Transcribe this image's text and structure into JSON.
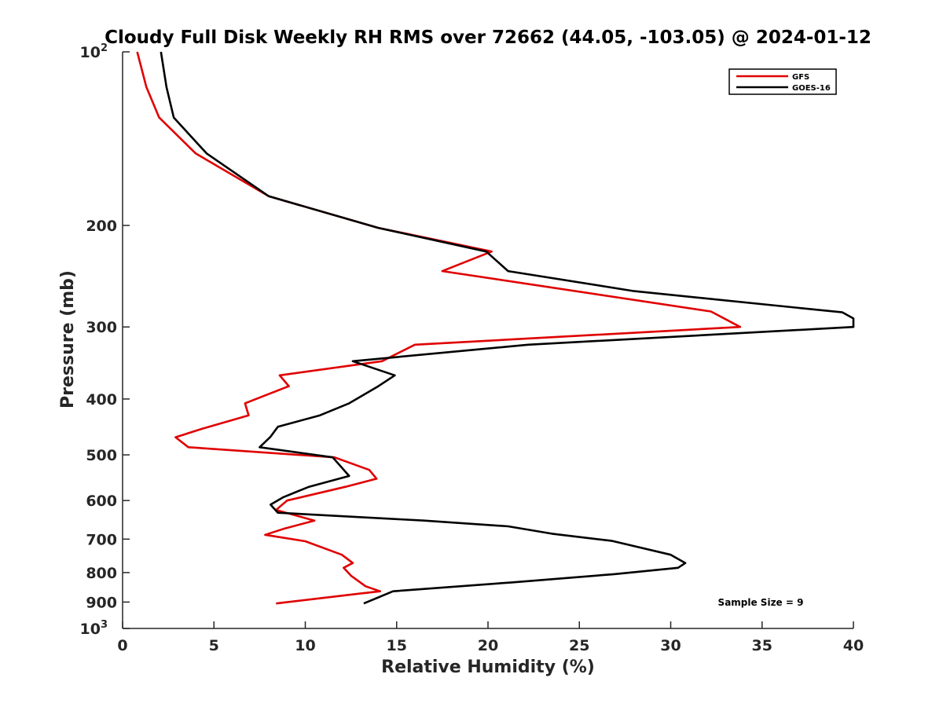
{
  "chart_data": {
    "type": "line",
    "title": "Cloudy Full Disk Weekly RH RMS over 72662 (44.05, -103.05) @ 2024-01-12",
    "xlabel": "Relative Humidity (%)",
    "ylabel": "Pressure (mb)",
    "xlim": [
      0,
      40
    ],
    "ylim": [
      100,
      1000
    ],
    "y_scale": "log",
    "y_reversed": true,
    "grid": false,
    "legend_location": "top-right",
    "x_ticks": [
      "0",
      "5",
      "10",
      "15",
      "20",
      "25",
      "30",
      "35",
      "40"
    ],
    "y_ticks": [
      {
        "value": 100,
        "base": "10",
        "exp": "2"
      },
      {
        "value": 200,
        "label": "200"
      },
      {
        "value": 300,
        "label": "300"
      },
      {
        "value": 400,
        "label": "400"
      },
      {
        "value": 500,
        "label": "500"
      },
      {
        "value": 600,
        "label": "600"
      },
      {
        "value": 700,
        "label": "700"
      },
      {
        "value": 800,
        "label": "800"
      },
      {
        "value": 900,
        "label": "900"
      },
      {
        "value": 1000,
        "base": "10",
        "exp": "3"
      }
    ],
    "annotation": "Sample Size = 9",
    "series": [
      {
        "name": "GFS",
        "color": "#e00000",
        "points": [
          [
            0.8,
            100
          ],
          [
            1.3,
            115
          ],
          [
            2.0,
            130
          ],
          [
            4.0,
            150
          ],
          [
            8.0,
            178
          ],
          [
            14.0,
            202
          ],
          [
            20.2,
            222
          ],
          [
            17.5,
            240
          ],
          [
            32.2,
            282
          ],
          [
            33.8,
            300
          ],
          [
            16.0,
            322
          ],
          [
            14.2,
            344
          ],
          [
            8.6,
            364
          ],
          [
            9.1,
            380
          ],
          [
            6.7,
            407
          ],
          [
            6.9,
            427
          ],
          [
            4.4,
            450
          ],
          [
            2.9,
            466
          ],
          [
            3.6,
            485
          ],
          [
            11.6,
            505
          ],
          [
            13.5,
            531
          ],
          [
            13.9,
            550
          ],
          [
            12.2,
            568
          ],
          [
            9.0,
            600
          ],
          [
            8.4,
            623
          ],
          [
            10.5,
            650
          ],
          [
            8.8,
            672
          ],
          [
            7.8,
            688
          ],
          [
            10.0,
            706
          ],
          [
            12.0,
            745
          ],
          [
            12.6,
            770
          ],
          [
            12.1,
            785
          ],
          [
            12.5,
            810
          ],
          [
            13.3,
            845
          ],
          [
            14.1,
            862
          ],
          [
            13.0,
            870
          ],
          [
            8.4,
            905
          ]
        ]
      },
      {
        "name": "GOES-16",
        "color": "#000000",
        "points": [
          [
            2.1,
            100
          ],
          [
            2.4,
            115
          ],
          [
            2.8,
            130
          ],
          [
            4.6,
            150
          ],
          [
            8.0,
            178
          ],
          [
            14.0,
            202
          ],
          [
            19.9,
            222
          ],
          [
            21.1,
            240
          ],
          [
            28.0,
            260
          ],
          [
            39.4,
            283
          ],
          [
            40.0,
            290
          ],
          [
            40.0,
            300
          ],
          [
            22.2,
            322
          ],
          [
            12.6,
            344
          ],
          [
            14.9,
            364
          ],
          [
            14.0,
            380
          ],
          [
            12.4,
            407
          ],
          [
            10.8,
            427
          ],
          [
            8.5,
            447
          ],
          [
            8.1,
            465
          ],
          [
            7.5,
            485
          ],
          [
            11.5,
            505
          ],
          [
            12.4,
            544
          ],
          [
            10.2,
            568
          ],
          [
            8.8,
            592
          ],
          [
            8.1,
            610
          ],
          [
            8.5,
            630
          ],
          [
            16.5,
            650
          ],
          [
            21.1,
            665
          ],
          [
            23.5,
            685
          ],
          [
            26.8,
            705
          ],
          [
            30.0,
            745
          ],
          [
            30.8,
            770
          ],
          [
            30.4,
            785
          ],
          [
            26.9,
            805
          ],
          [
            21.3,
            832
          ],
          [
            14.8,
            862
          ],
          [
            13.2,
            905
          ]
        ]
      }
    ]
  }
}
